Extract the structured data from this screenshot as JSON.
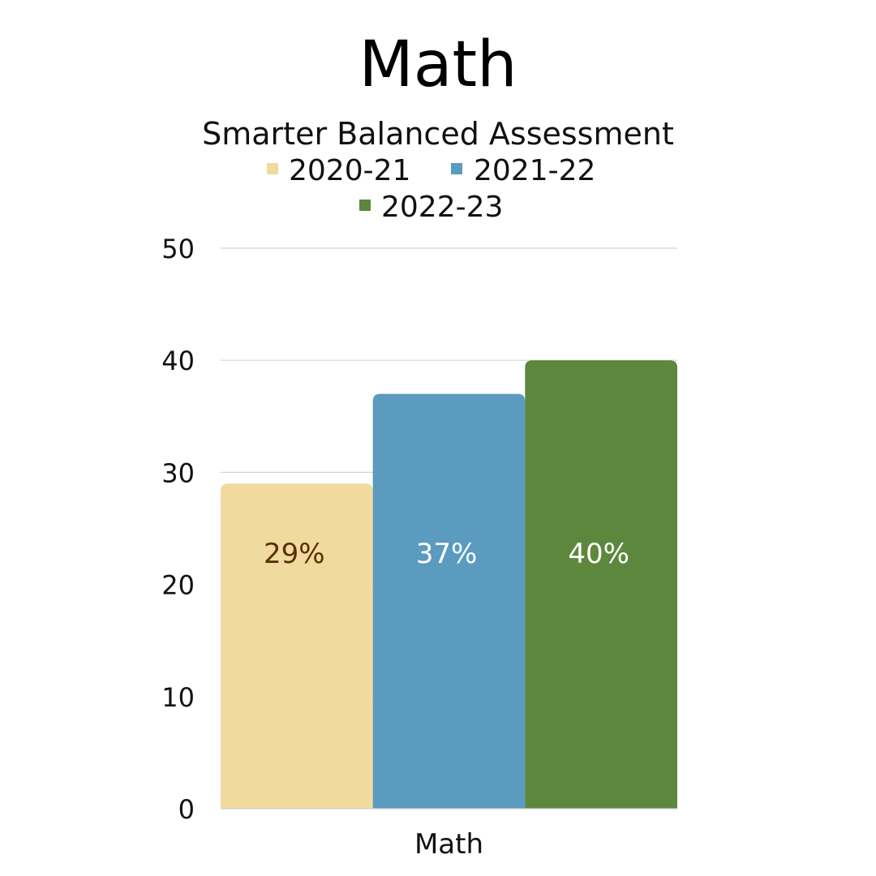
{
  "title": "Math",
  "subtitle": "Smarter Balanced Assessment",
  "chart_data": {
    "type": "bar",
    "title": "Math",
    "subtitle": "Smarter Balanced Assessment",
    "categories": [
      "Math"
    ],
    "series": [
      {
        "name": "2020-21",
        "values": [
          29
        ],
        "label": "29%",
        "color": "#f0da9e",
        "label_color": "#5a2e0a"
      },
      {
        "name": "2021-22",
        "values": [
          37
        ],
        "label": "37%",
        "color": "#5a9bbf",
        "label_color": "#ffffff"
      },
      {
        "name": "2022-23",
        "values": [
          40
        ],
        "label": "40%",
        "color": "#5c873d",
        "label_color": "#ffffff"
      }
    ],
    "y_ticks": [
      "0",
      "10",
      "20",
      "30",
      "40",
      "50"
    ],
    "ylim": [
      0,
      50
    ],
    "grid": true,
    "legend_position": "top"
  }
}
